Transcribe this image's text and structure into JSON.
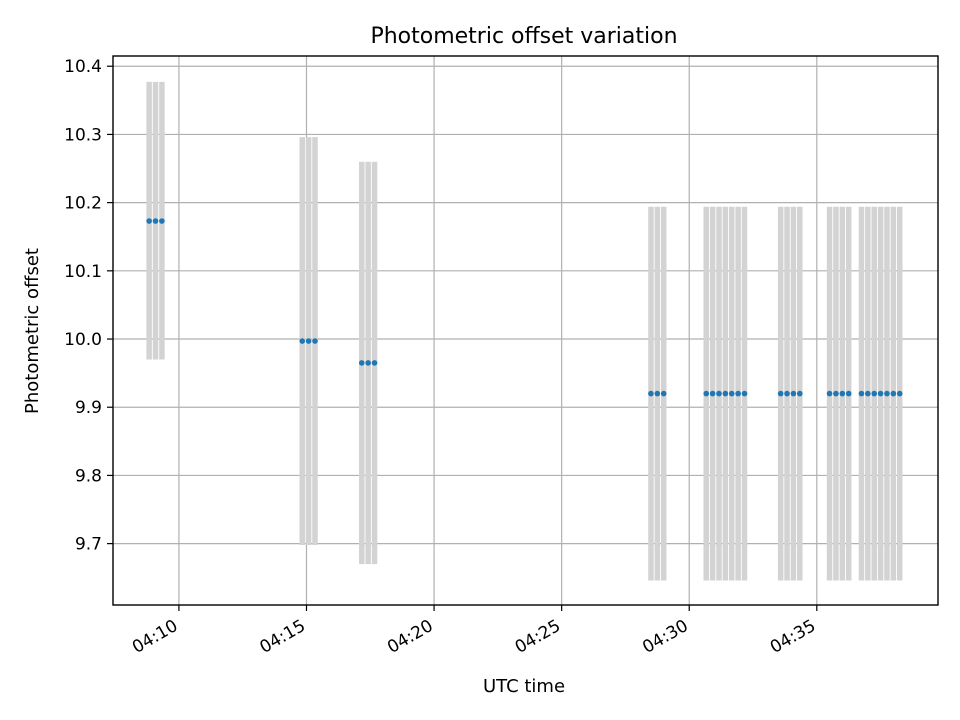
{
  "chart_data": {
    "type": "scatter",
    "title": "Photometric offset variation",
    "xlabel": "UTC time",
    "ylabel": "Photometric offset",
    "x_format": "HH:MM",
    "xlim": [
      "04:07:25",
      "04:39:45"
    ],
    "ylim": [
      9.61,
      10.415
    ],
    "xticks": [
      "04:10",
      "04:15",
      "04:20",
      "04:25",
      "04:30",
      "04:35"
    ],
    "yticks": [
      9.7,
      9.8,
      9.9,
      10.0,
      10.1,
      10.2,
      10.3,
      10.4
    ],
    "grid": true,
    "colors": {
      "points": "#1f77b4",
      "error_bars": "#d3d3d3"
    },
    "series": [
      {
        "points": [
          {
            "t": "04:08:50",
            "y": 10.173,
            "err_low": 9.97,
            "err_high": 10.377
          },
          {
            "t": "04:09:05",
            "y": 10.173,
            "err_low": 9.97,
            "err_high": 10.377
          },
          {
            "t": "04:09:20",
            "y": 10.173,
            "err_low": 9.97,
            "err_high": 10.377
          },
          {
            "t": "04:14:50",
            "y": 9.997,
            "err_low": 9.698,
            "err_high": 10.296
          },
          {
            "t": "04:15:05",
            "y": 9.997,
            "err_low": 9.698,
            "err_high": 10.296
          },
          {
            "t": "04:15:20",
            "y": 9.997,
            "err_low": 9.698,
            "err_high": 10.296
          },
          {
            "t": "04:17:10",
            "y": 9.965,
            "err_low": 9.67,
            "err_high": 10.26
          },
          {
            "t": "04:17:25",
            "y": 9.965,
            "err_low": 9.67,
            "err_high": 10.26
          },
          {
            "t": "04:17:40",
            "y": 9.965,
            "err_low": 9.67,
            "err_high": 10.26
          },
          {
            "t": "04:28:30",
            "y": 9.92,
            "err_low": 9.646,
            "err_high": 10.194
          },
          {
            "t": "04:28:45",
            "y": 9.92,
            "err_low": 9.646,
            "err_high": 10.194
          },
          {
            "t": "04:29:00",
            "y": 9.92,
            "err_low": 9.646,
            "err_high": 10.194
          },
          {
            "t": "04:30:40",
            "y": 9.92,
            "err_low": 9.646,
            "err_high": 10.194
          },
          {
            "t": "04:30:55",
            "y": 9.92,
            "err_low": 9.646,
            "err_high": 10.194
          },
          {
            "t": "04:31:10",
            "y": 9.92,
            "err_low": 9.646,
            "err_high": 10.194
          },
          {
            "t": "04:31:25",
            "y": 9.92,
            "err_low": 9.646,
            "err_high": 10.194
          },
          {
            "t": "04:31:40",
            "y": 9.92,
            "err_low": 9.646,
            "err_high": 10.194
          },
          {
            "t": "04:31:55",
            "y": 9.92,
            "err_low": 9.646,
            "err_high": 10.194
          },
          {
            "t": "04:32:10",
            "y": 9.92,
            "err_low": 9.646,
            "err_high": 10.194
          },
          {
            "t": "04:33:35",
            "y": 9.92,
            "err_low": 9.646,
            "err_high": 10.194
          },
          {
            "t": "04:33:50",
            "y": 9.92,
            "err_low": 9.646,
            "err_high": 10.194
          },
          {
            "t": "04:34:05",
            "y": 9.92,
            "err_low": 9.646,
            "err_high": 10.194
          },
          {
            "t": "04:34:20",
            "y": 9.92,
            "err_low": 9.646,
            "err_high": 10.194
          },
          {
            "t": "04:35:30",
            "y": 9.92,
            "err_low": 9.646,
            "err_high": 10.194
          },
          {
            "t": "04:35:45",
            "y": 9.92,
            "err_low": 9.646,
            "err_high": 10.194
          },
          {
            "t": "04:36:00",
            "y": 9.92,
            "err_low": 9.646,
            "err_high": 10.194
          },
          {
            "t": "04:36:15",
            "y": 9.92,
            "err_low": 9.646,
            "err_high": 10.194
          },
          {
            "t": "04:36:45",
            "y": 9.92,
            "err_low": 9.646,
            "err_high": 10.194
          },
          {
            "t": "04:37:00",
            "y": 9.92,
            "err_low": 9.646,
            "err_high": 10.194
          },
          {
            "t": "04:37:15",
            "y": 9.92,
            "err_low": 9.646,
            "err_high": 10.194
          },
          {
            "t": "04:37:30",
            "y": 9.92,
            "err_low": 9.646,
            "err_high": 10.194
          },
          {
            "t": "04:37:45",
            "y": 9.92,
            "err_low": 9.646,
            "err_high": 10.194
          },
          {
            "t": "04:38:00",
            "y": 9.92,
            "err_low": 9.646,
            "err_high": 10.194
          },
          {
            "t": "04:38:15",
            "y": 9.92,
            "err_low": 9.646,
            "err_high": 10.194
          }
        ]
      }
    ]
  }
}
